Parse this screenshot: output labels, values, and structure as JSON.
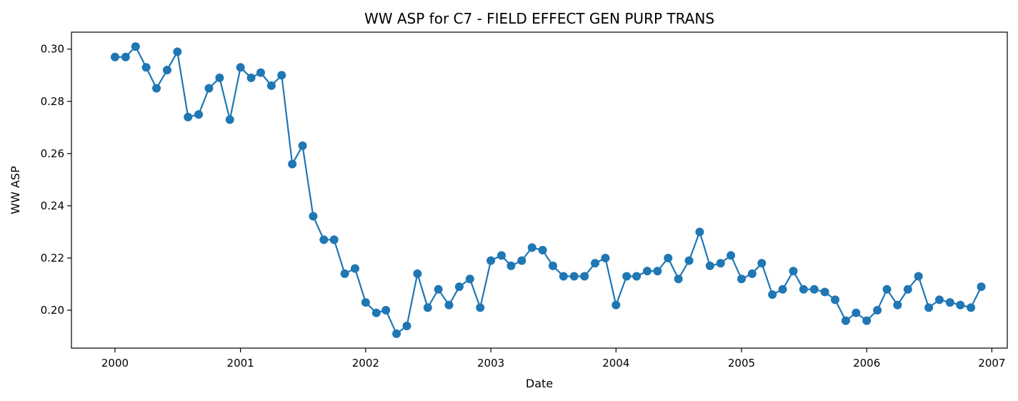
{
  "chart_data": {
    "type": "line",
    "title": "WW ASP for C7 - FIELD EFFECT GEN PURP TRANS",
    "xlabel": "Date",
    "ylabel": "WW ASP",
    "xlim": [
      "1999-08-27",
      "2007-02-15"
    ],
    "ylim": [
      0.1855,
      0.3065
    ],
    "x_ticks": [
      "2000",
      "2001",
      "2002",
      "2003",
      "2004",
      "2005",
      "2006",
      "2007"
    ],
    "y_ticks": [
      "0.20",
      "0.22",
      "0.24",
      "0.26",
      "0.28",
      "0.30"
    ],
    "grid": false,
    "legend": "none",
    "series": [
      {
        "color": "#1f77b4",
        "marker": "circle",
        "x": [
          "2000-01",
          "2000-02",
          "2000-03",
          "2000-04",
          "2000-05",
          "2000-06",
          "2000-07",
          "2000-08",
          "2000-09",
          "2000-10",
          "2000-11",
          "2000-12",
          "2001-01",
          "2001-02",
          "2001-03",
          "2001-04",
          "2001-05",
          "2001-06",
          "2001-07",
          "2001-08",
          "2001-09",
          "2001-10",
          "2001-11",
          "2001-12",
          "2002-01",
          "2002-02",
          "2002-03",
          "2002-04",
          "2002-05",
          "2002-06",
          "2002-07",
          "2002-08",
          "2002-09",
          "2002-10",
          "2002-11",
          "2002-12",
          "2003-01",
          "2003-02",
          "2003-03",
          "2003-04",
          "2003-05",
          "2003-06",
          "2003-07",
          "2003-08",
          "2003-09",
          "2003-10",
          "2003-11",
          "2003-12",
          "2004-01",
          "2004-02",
          "2004-03",
          "2004-04",
          "2004-05",
          "2004-06",
          "2004-07",
          "2004-08",
          "2004-09",
          "2004-10",
          "2004-11",
          "2004-12",
          "2005-01",
          "2005-02",
          "2005-03",
          "2005-04",
          "2005-05",
          "2005-06",
          "2005-07",
          "2005-08",
          "2005-09",
          "2005-10",
          "2005-11",
          "2005-12",
          "2006-01",
          "2006-02",
          "2006-03",
          "2006-04",
          "2006-05",
          "2006-06",
          "2006-07",
          "2006-08",
          "2006-09",
          "2006-10",
          "2006-11",
          "2006-12"
        ],
        "values": [
          0.297,
          0.297,
          0.301,
          0.293,
          0.285,
          0.292,
          0.299,
          0.274,
          0.275,
          0.285,
          0.289,
          0.273,
          0.293,
          0.289,
          0.291,
          0.286,
          0.29,
          0.256,
          0.263,
          0.236,
          0.227,
          0.227,
          0.214,
          0.216,
          0.203,
          0.199,
          0.2,
          0.191,
          0.194,
          0.214,
          0.201,
          0.208,
          0.202,
          0.209,
          0.212,
          0.201,
          0.219,
          0.221,
          0.217,
          0.219,
          0.224,
          0.223,
          0.217,
          0.213,
          0.213,
          0.213,
          0.218,
          0.22,
          0.202,
          0.213,
          0.213,
          0.215,
          0.215,
          0.22,
          0.212,
          0.219,
          0.23,
          0.217,
          0.218,
          0.221,
          0.212,
          0.214,
          0.218,
          0.206,
          0.208,
          0.215,
          0.208,
          0.208,
          0.207,
          0.204,
          0.196,
          0.199,
          0.196,
          0.2,
          0.208,
          0.202,
          0.208,
          0.213,
          0.201,
          0.204,
          0.203,
          0.202,
          0.201,
          0.209
        ]
      }
    ]
  }
}
